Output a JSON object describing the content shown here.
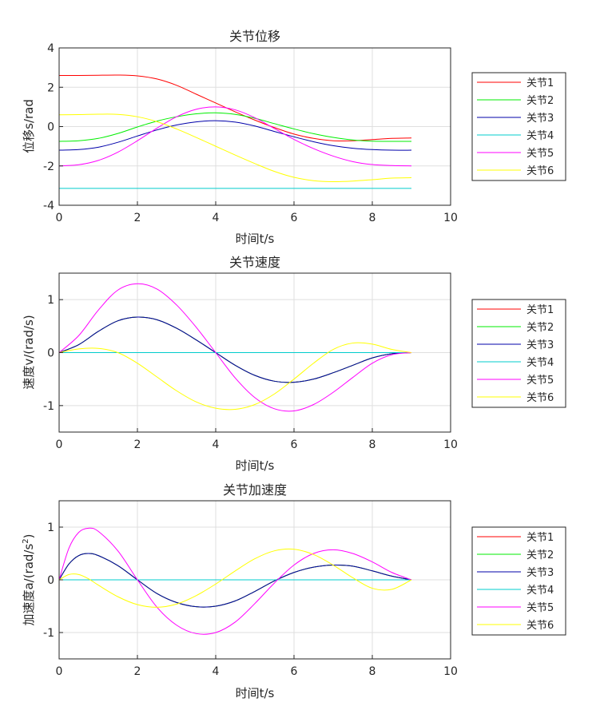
{
  "chart_data": [
    {
      "type": "line",
      "title": "关节位移",
      "xlabel": "时间t/s",
      "ylabel": "位移s/rad",
      "xlim": [
        0,
        10
      ],
      "ylim": [
        -4,
        4
      ],
      "xticks": [
        "0",
        "2",
        "4",
        "6",
        "8",
        "10"
      ],
      "yticks": [
        "4",
        "2",
        "0",
        "-2",
        "-4"
      ],
      "grid": true,
      "legend_position": "right",
      "x": [
        0,
        0.5,
        1,
        1.5,
        2,
        2.5,
        3,
        3.5,
        4,
        4.5,
        5,
        5.5,
        6,
        6.5,
        7,
        7.5,
        8,
        8.5,
        9
      ],
      "series": [
        {
          "name": "关节1",
          "color": "#ff0000",
          "values": [
            2.6,
            2.6,
            2.61,
            2.62,
            2.58,
            2.42,
            2.1,
            1.65,
            1.2,
            0.75,
            0.33,
            -0.05,
            -0.38,
            -0.6,
            -0.72,
            -0.72,
            -0.66,
            -0.6,
            -0.58
          ]
        },
        {
          "name": "关节2",
          "color": "#00ee00",
          "values": [
            -0.75,
            -0.72,
            -0.6,
            -0.35,
            -0.02,
            0.28,
            0.5,
            0.65,
            0.7,
            0.62,
            0.42,
            0.15,
            -0.12,
            -0.36,
            -0.55,
            -0.68,
            -0.74,
            -0.75,
            -0.75
          ]
        },
        {
          "name": "关节3",
          "color": "#0000aa",
          "values": [
            -1.2,
            -1.17,
            -1.05,
            -0.8,
            -0.48,
            -0.17,
            0.08,
            0.24,
            0.3,
            0.23,
            0.03,
            -0.25,
            -0.52,
            -0.77,
            -0.97,
            -1.1,
            -1.17,
            -1.2,
            -1.2
          ]
        },
        {
          "name": "关节4",
          "color": "#00cccc",
          "values": [
            -3.14,
            -3.14,
            -3.14,
            -3.14,
            -3.14,
            -3.14,
            -3.14,
            -3.14,
            -3.14,
            -3.14,
            -3.14,
            -3.14,
            -3.14,
            -3.14,
            -3.14,
            -3.14,
            -3.14,
            -3.14,
            -3.14
          ]
        },
        {
          "name": "关节5",
          "color": "#ff00ff",
          "values": [
            -2.0,
            -1.94,
            -1.72,
            -1.3,
            -0.72,
            -0.08,
            0.5,
            0.88,
            1.0,
            0.85,
            0.45,
            -0.1,
            -0.65,
            -1.12,
            -1.5,
            -1.78,
            -1.93,
            -1.98,
            -2.0
          ]
        },
        {
          "name": "关节6",
          "color": "#ffff00",
          "values": [
            0.6,
            0.61,
            0.63,
            0.62,
            0.5,
            0.25,
            -0.12,
            -0.55,
            -1.0,
            -1.45,
            -1.88,
            -2.28,
            -2.58,
            -2.75,
            -2.8,
            -2.77,
            -2.7,
            -2.62,
            -2.6
          ]
        }
      ]
    },
    {
      "type": "line",
      "title": "关节速度",
      "xlabel": "时间t/s",
      "ylabel": "速度v/(rad/s)",
      "xlim": [
        0,
        10
      ],
      "ylim": [
        -1.5,
        1.5
      ],
      "xticks": [
        "0",
        "2",
        "4",
        "6",
        "8",
        "10"
      ],
      "yticks": [
        "1",
        "0",
        "-1"
      ],
      "grid": true,
      "legend_position": "right",
      "x": [
        0,
        0.5,
        1,
        1.5,
        2,
        2.5,
        3,
        3.5,
        4,
        4.5,
        5,
        5.5,
        6,
        6.5,
        7,
        7.5,
        8,
        8.5,
        9
      ],
      "series": [
        {
          "name": "关节1",
          "color": "#ff0000",
          "values": [
            0,
            0.15,
            0.4,
            0.6,
            0.67,
            0.62,
            0.46,
            0.24,
            0.0,
            -0.24,
            -0.43,
            -0.54,
            -0.56,
            -0.5,
            -0.38,
            -0.24,
            -0.1,
            -0.02,
            0
          ]
        },
        {
          "name": "关节2",
          "color": "#00ee00",
          "values": [
            0,
            0.15,
            0.4,
            0.6,
            0.67,
            0.62,
            0.46,
            0.24,
            0.0,
            -0.24,
            -0.43,
            -0.54,
            -0.56,
            -0.5,
            -0.38,
            -0.24,
            -0.1,
            -0.02,
            0
          ]
        },
        {
          "name": "关节3",
          "color": "#0000aa",
          "values": [
            0,
            0.15,
            0.4,
            0.6,
            0.67,
            0.62,
            0.46,
            0.24,
            0.0,
            -0.24,
            -0.43,
            -0.54,
            -0.56,
            -0.5,
            -0.38,
            -0.24,
            -0.1,
            -0.02,
            0
          ]
        },
        {
          "name": "关节4",
          "color": "#00cccc",
          "values": [
            0,
            0,
            0,
            0,
            0,
            0,
            0,
            0,
            0,
            0,
            0,
            0,
            0,
            0,
            0,
            0,
            0,
            0,
            0
          ]
        },
        {
          "name": "关节5",
          "color": "#ff00ff",
          "values": [
            0,
            0.32,
            0.8,
            1.18,
            1.3,
            1.2,
            0.9,
            0.48,
            0.0,
            -0.48,
            -0.85,
            -1.06,
            -1.1,
            -0.98,
            -0.75,
            -0.47,
            -0.2,
            -0.04,
            0
          ]
        },
        {
          "name": "关节6",
          "color": "#ffff00",
          "values": [
            0,
            0.07,
            0.08,
            0.0,
            -0.2,
            -0.46,
            -0.72,
            -0.93,
            -1.05,
            -1.07,
            -0.98,
            -0.78,
            -0.5,
            -0.2,
            0.06,
            0.18,
            0.16,
            0.06,
            0
          ]
        }
      ]
    },
    {
      "type": "line",
      "title": "关节加速度",
      "xlabel": "时间t/s",
      "ylabel": "加速度a/(rad/s",
      "ylabel_superscript": "2",
      "ylabel_suffix": ")",
      "xlim": [
        0,
        10
      ],
      "ylim": [
        -1.5,
        1.5
      ],
      "xticks": [
        "0",
        "2",
        "4",
        "6",
        "8",
        "10"
      ],
      "yticks": [
        "1",
        "0",
        "-1"
      ],
      "grid": true,
      "legend_position": "right",
      "x": [
        0,
        0.25,
        0.5,
        0.75,
        1,
        1.5,
        2,
        2.5,
        3,
        3.5,
        4,
        4.5,
        5,
        5.5,
        6,
        6.5,
        7,
        7.5,
        8,
        8.5,
        9
      ],
      "series": [
        {
          "name": "关节1",
          "color": "#ff0000",
          "values": [
            0,
            0.3,
            0.46,
            0.5,
            0.46,
            0.27,
            0.0,
            -0.26,
            -0.43,
            -0.51,
            -0.5,
            -0.4,
            -0.22,
            -0.02,
            0.14,
            0.24,
            0.28,
            0.26,
            0.17,
            0.07,
            0
          ]
        },
        {
          "name": "关节2",
          "color": "#00ee00",
          "values": [
            0,
            0.3,
            0.46,
            0.5,
            0.46,
            0.27,
            0.0,
            -0.26,
            -0.43,
            -0.51,
            -0.5,
            -0.4,
            -0.22,
            -0.02,
            0.14,
            0.24,
            0.28,
            0.26,
            0.17,
            0.07,
            0
          ]
        },
        {
          "name": "关节3",
          "color": "#0000aa",
          "values": [
            0,
            0.3,
            0.46,
            0.5,
            0.46,
            0.27,
            0.0,
            -0.26,
            -0.43,
            -0.51,
            -0.5,
            -0.4,
            -0.22,
            -0.02,
            0.14,
            0.24,
            0.28,
            0.26,
            0.17,
            0.07,
            0
          ]
        },
        {
          "name": "关节4",
          "color": "#00cccc",
          "values": [
            0,
            0,
            0,
            0,
            0,
            0,
            0,
            0,
            0,
            0,
            0,
            0,
            0,
            0,
            0,
            0,
            0,
            0,
            0,
            0,
            0
          ]
        },
        {
          "name": "关节5",
          "color": "#ff00ff",
          "values": [
            0,
            0.6,
            0.9,
            0.98,
            0.92,
            0.55,
            0.0,
            -0.52,
            -0.86,
            -1.02,
            -1.0,
            -0.8,
            -0.45,
            -0.06,
            0.28,
            0.5,
            0.57,
            0.5,
            0.34,
            0.14,
            0
          ]
        },
        {
          "name": "关节6",
          "color": "#ffff00",
          "values": [
            0,
            0.1,
            0.1,
            0.02,
            -0.1,
            -0.32,
            -0.47,
            -0.52,
            -0.46,
            -0.3,
            -0.08,
            0.17,
            0.4,
            0.55,
            0.58,
            0.48,
            0.28,
            0.04,
            -0.16,
            -0.18,
            0
          ]
        }
      ]
    }
  ]
}
